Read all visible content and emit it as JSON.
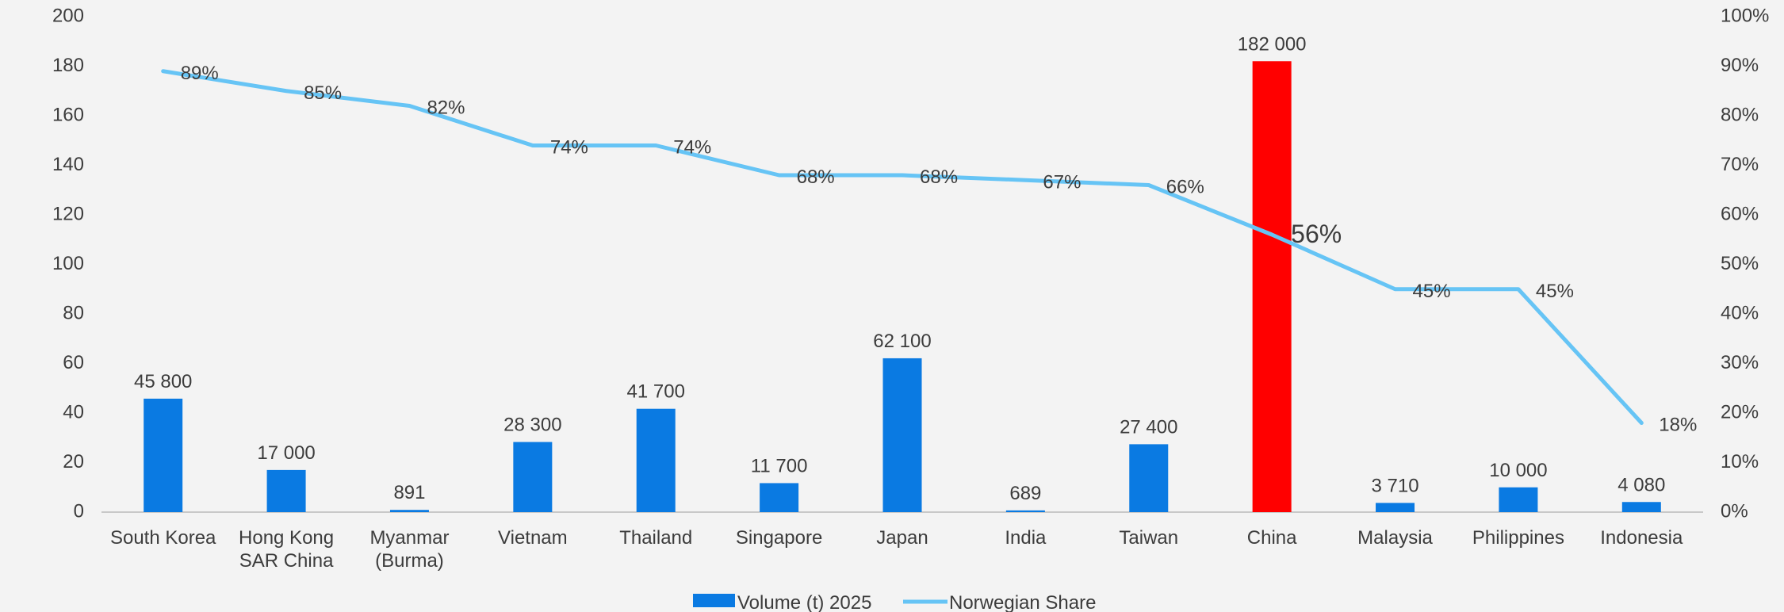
{
  "chart_data": {
    "type": "bar",
    "categories": [
      "South Korea",
      "Hong Kong\nSAR China",
      "Myanmar\n(Burma)",
      "Vietnam",
      "Thailand",
      "Singapore",
      "Japan",
      "India",
      "Taiwan",
      "China",
      "Malaysia",
      "Philippines",
      "Indonesia"
    ],
    "series": [
      {
        "name": "Volume (t) 2025",
        "type": "bar",
        "axis": "left",
        "color": "#0a7ae2",
        "values": [
          45800,
          17000,
          891,
          28300,
          41700,
          11700,
          62100,
          689,
          27400,
          182000,
          3710,
          10000,
          4080
        ],
        "labels": [
          "45 800",
          "17 000",
          "891",
          "28 300",
          "41 700",
          "11 700",
          "62 100",
          "689",
          "27 400",
          "182 000",
          "3 710",
          "10 000",
          "4 080"
        ],
        "highlight": {
          "index": 9,
          "color": "#ff0000"
        }
      },
      {
        "name": "Norwegian Share",
        "type": "line",
        "axis": "right",
        "color": "#66c4f5",
        "values": [
          89,
          85,
          82,
          74,
          74,
          68,
          68,
          67,
          66,
          56,
          45,
          45,
          18
        ],
        "labels": [
          "89%",
          "85%",
          "82%",
          "74%",
          "74%",
          "68%",
          "68%",
          "67%",
          "66%",
          "56%",
          "45%",
          "45%",
          "18%"
        ],
        "emphasis_index": 9
      }
    ],
    "y_left": {
      "min": 0,
      "max": 200,
      "step": 20,
      "tick_labels": [
        "0",
        "20",
        "40",
        "60",
        "80",
        "100",
        "120",
        "140",
        "160",
        "180",
        "200"
      ]
    },
    "y_right": {
      "min": 0,
      "max": 100,
      "step": 10,
      "tick_labels": [
        "0%",
        "10%",
        "20%",
        "30%",
        "40%",
        "50%",
        "60%",
        "70%",
        "80%",
        "90%",
        "100%"
      ]
    },
    "title": "",
    "xlabel": "",
    "ylabel": "",
    "grid": false,
    "legend": {
      "position": "bottom",
      "items": [
        {
          "label": "Volume (t) 2025",
          "marker": "bar",
          "color": "#0a7ae2"
        },
        {
          "label": "Norwegian Share",
          "marker": "line",
          "color": "#66c4f5"
        }
      ]
    },
    "colors": {
      "background": "#f3f3f3",
      "text": "#3c3c3c",
      "axis": "#c8c8c8"
    }
  }
}
